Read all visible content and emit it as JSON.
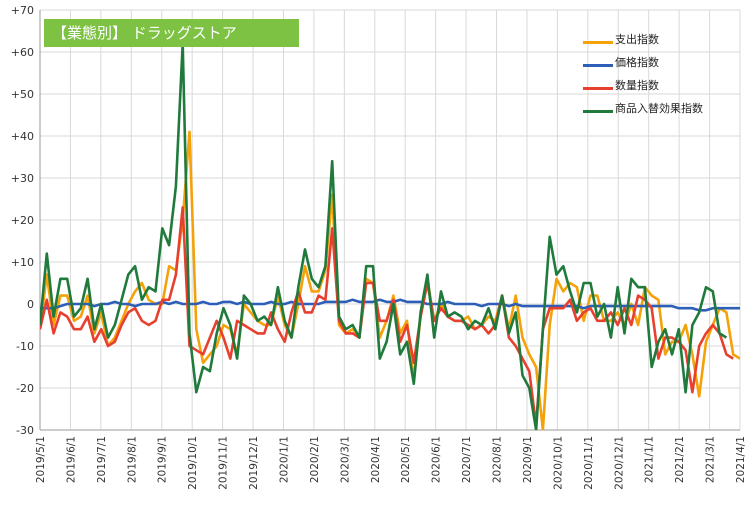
{
  "chart_data": {
    "type": "line",
    "title": "【業態別】 ドラッグストア",
    "ylim": [
      -30,
      70
    ],
    "yticks": [
      "-30",
      "-20",
      "-10",
      "0",
      "+10",
      "+20",
      "+30",
      "+40",
      "+50",
      "+60",
      "+70"
    ],
    "ytick_values": [
      -30,
      -20,
      -10,
      0,
      10,
      20,
      30,
      40,
      50,
      60,
      70
    ],
    "xlabels": [
      "2019/5/1",
      "2019/6/1",
      "2019/7/1",
      "2019/8/1",
      "2019/9/1",
      "2019/10/1",
      "2019/11/1",
      "2019/12/1",
      "2020/1/1",
      "2020/2/1",
      "2020/3/1",
      "2020/4/1",
      "2020/5/1",
      "2020/6/1",
      "2020/7/1",
      "2020/8/1",
      "2020/9/1",
      "2020/10/1",
      "2020/11/1",
      "2020/12/1",
      "2021/1/1",
      "2021/2/1",
      "2021/3/1",
      "2021/4/1"
    ],
    "grid": true,
    "legend_position": "top-right",
    "series": [
      {
        "name": "支出指数",
        "color": "#f5a20a",
        "values": [
          -6,
          7,
          -5,
          2,
          2,
          -4,
          -3,
          2,
          -7,
          -2,
          -10,
          -8,
          -4,
          0,
          3,
          5,
          1,
          0,
          0,
          9,
          8,
          20,
          41,
          -6,
          -14,
          -12,
          -10,
          -5,
          -6,
          -12,
          0,
          -2,
          -4,
          -5,
          -5,
          2,
          -5,
          -8,
          0,
          9,
          3,
          3,
          8,
          26,
          -5,
          -7,
          -6,
          -8,
          6,
          5,
          -8,
          -4,
          2,
          -7,
          -4,
          -18,
          -3,
          6,
          -4,
          0,
          -3,
          -4,
          -4,
          -3,
          -6,
          -5,
          -3,
          -4,
          2,
          -6,
          2,
          -8,
          -12,
          -15,
          -30,
          -5,
          6,
          3,
          5,
          4,
          -4,
          2,
          2,
          -4,
          -4,
          -2,
          -5,
          0,
          -5,
          4,
          2,
          1,
          -12,
          -9,
          -9,
          -5,
          -12,
          -22,
          -9,
          -5,
          -1,
          -2,
          -12,
          -13
        ]
      },
      {
        "name": "価格指数",
        "color": "#2e5fb8",
        "values": [
          -1,
          -1,
          -1,
          -0.5,
          0,
          0,
          0,
          0,
          -0.5,
          0,
          0,
          0.5,
          0,
          0,
          -0.5,
          0,
          0,
          0,
          0.5,
          0,
          0.5,
          0,
          0,
          0,
          0.5,
          0,
          0,
          0.5,
          0.5,
          0,
          0.5,
          0,
          0,
          0,
          0.5,
          0,
          0,
          0.5,
          0,
          0,
          0,
          0,
          0.5,
          0.5,
          0.5,
          0.5,
          1,
          0.5,
          0.5,
          0.5,
          1,
          0.5,
          0.5,
          1,
          0.5,
          0.5,
          0.5,
          0,
          0,
          0,
          0.5,
          0,
          0,
          0,
          0,
          -0.5,
          0,
          0,
          0,
          -0.5,
          0,
          -0.5,
          -0.5,
          -0.5,
          -0.5,
          -0.5,
          -0.5,
          -0.5,
          -0.5,
          -0.5,
          -1,
          -0.5,
          -0.5,
          -0.5,
          -0.5,
          -0.5,
          -0.5,
          -0.5,
          -0.5,
          -0.5,
          -0.5,
          -0.5,
          -0.5,
          -0.5,
          -1,
          -1,
          -1,
          -1.5,
          -1.5,
          -1,
          -1,
          -1,
          -1,
          -1
        ]
      },
      {
        "name": "数量指数",
        "color": "#e8402f",
        "values": [
          -6,
          1,
          -7,
          -2,
          -3,
          -6,
          -6,
          -3,
          -9,
          -6,
          -10,
          -9,
          -5,
          -2,
          -1,
          -4,
          -5,
          -4,
          1,
          1,
          7,
          23,
          -10,
          -11,
          -12,
          -8,
          -4,
          -8,
          -13,
          -4,
          -5,
          -6,
          -7,
          -7,
          -2,
          -6,
          -9,
          -2,
          3,
          -2,
          -2,
          2,
          1,
          18,
          -4,
          -7,
          -7,
          -8,
          5,
          5,
          -4,
          -4,
          1,
          -9,
          -5,
          -14,
          -3,
          5,
          -4,
          -1,
          -3,
          -4,
          -4,
          -5,
          -6,
          -5,
          -7,
          -5,
          2,
          -8,
          -10,
          -13,
          -16,
          -29,
          -6,
          -1,
          -1,
          -1,
          1,
          -4,
          -2,
          -1,
          -4,
          -4,
          -2,
          -5,
          -1,
          -5,
          2,
          1,
          -1,
          -13,
          -8,
          -8,
          -9,
          -11,
          -21,
          -10,
          -7,
          -5,
          -7,
          -12,
          -13
        ]
      },
      {
        "name": "商品入替効果指数",
        "color": "#1f7a3c",
        "values": [
          -5,
          12,
          -3,
          6,
          6,
          -3,
          -1,
          6,
          -6,
          0,
          -8,
          -5,
          1,
          7,
          9,
          1,
          4,
          3,
          18,
          14,
          28,
          62,
          -7,
          -21,
          -15,
          -16,
          -7,
          -1,
          -5,
          -13,
          2,
          0,
          -4,
          -3,
          -5,
          4,
          -4,
          -8,
          4,
          13,
          6,
          4,
          9,
          34,
          -3,
          -6,
          -5,
          -8,
          9,
          9,
          -13,
          -9,
          0,
          -12,
          -9,
          -19,
          -2,
          7,
          -8,
          3,
          -3,
          -2,
          -3,
          -6,
          -4,
          -5,
          -1,
          -6,
          2,
          -7,
          -2,
          -17,
          -20,
          -30,
          -6,
          16,
          7,
          9,
          3,
          -2,
          5,
          5,
          -3,
          0,
          -8,
          4,
          -7,
          6,
          4,
          4,
          -15,
          -9,
          -6,
          -12,
          -6,
          -21,
          -5,
          -2,
          4,
          3,
          -7,
          -8
        ]
      }
    ]
  }
}
